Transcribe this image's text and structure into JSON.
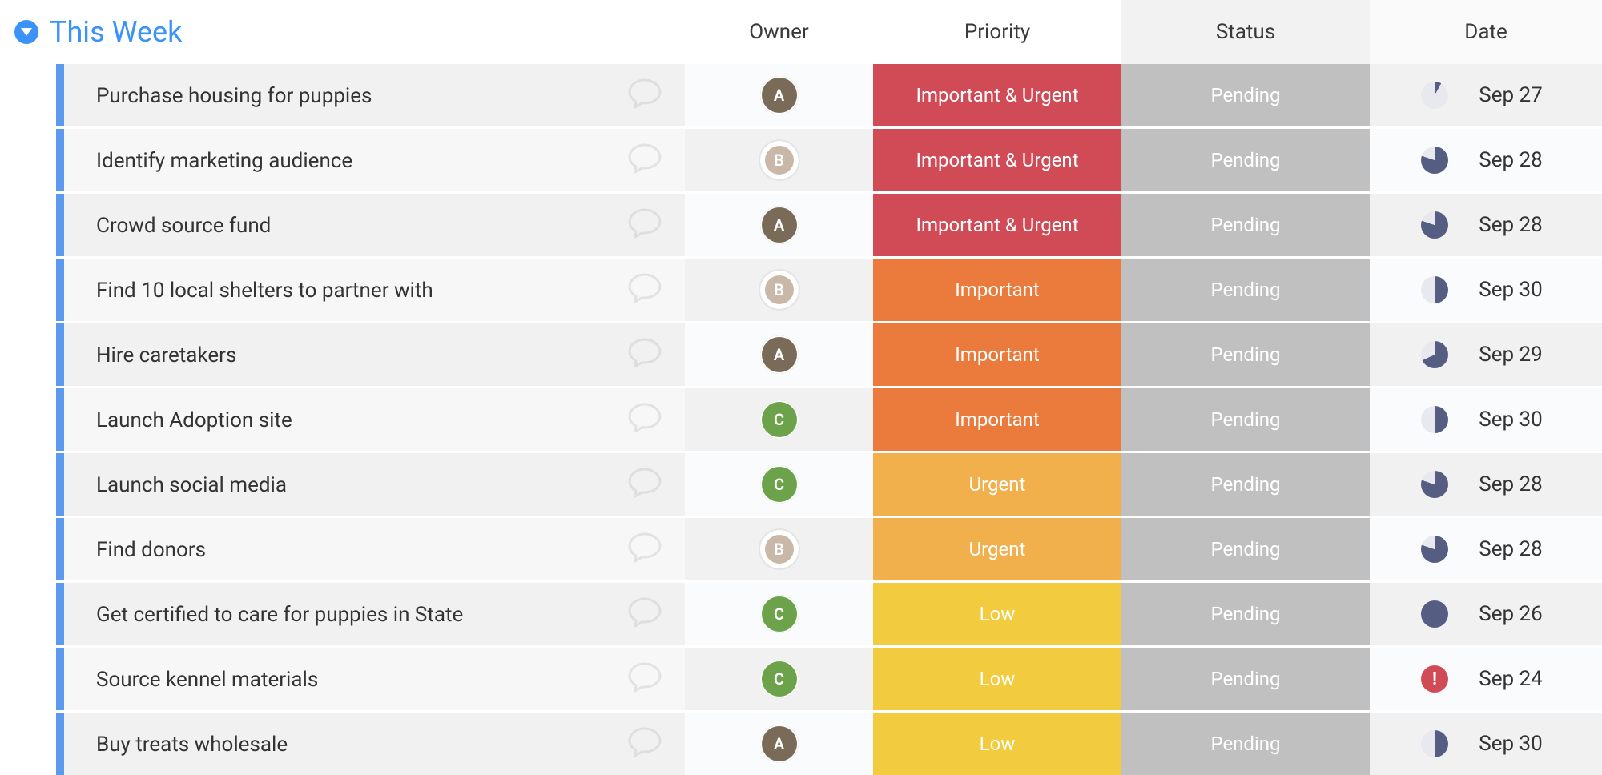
{
  "colors": {
    "group_accent": "#3b93f7",
    "group_title": "#3b93f7",
    "header_text": "#3a3a3a",
    "row_bg": "#f6f6f6",
    "row_handle": "#5c9aef",
    "gap": "#ffffff",
    "pie_fill": "#565d82",
    "pie_empty": "#e8e9ef",
    "overdue_bg": "#d14b57",
    "status_bg_even": "#f1f1f1",
    "status_bg_odd": "#c0c0c0",
    "date_bg_even": "#f1f1f1",
    "date_bg_odd": "#fafbfc",
    "owner_bg_even": "#fafbfc",
    "owner_bg_odd": "#f1f1f1",
    "task_bg_even": "#f1f1f1",
    "task_bg_odd": "#f7f7f7",
    "comment_stroke": "#bdbdbd"
  },
  "priority_colors": {
    "Important & Urgent": "#d14b57",
    "Important": "#ea7b3c",
    "Urgent": "#f1b04c",
    "Low": "#f3cb3f"
  },
  "status_colors": {
    "Pending": {
      "bg": "#c0c0c0",
      "text": "#ffffff"
    }
  },
  "avatars": {
    "A": {
      "bg": "#7a6a58",
      "label": "A"
    },
    "B": {
      "bg": "#c9b8a8",
      "label": "B",
      "ring": true
    },
    "C": {
      "bg": "#6ca24a",
      "label": "C"
    }
  },
  "group": {
    "title": "This Week"
  },
  "columns": {
    "owner": "Owner",
    "priority": "Priority",
    "status": "Status",
    "date": "Date"
  },
  "rows": [
    {
      "task": "Purchase housing for puppies",
      "owner": "A",
      "priority": "Important & Urgent",
      "status": "Pending",
      "date": "Sep 27",
      "progress": 0.08
    },
    {
      "task": "Identify marketing audience",
      "owner": "B",
      "priority": "Important & Urgent",
      "status": "Pending",
      "date": "Sep 28",
      "progress": 0.8
    },
    {
      "task": "Crowd source fund",
      "owner": "A",
      "priority": "Important & Urgent",
      "status": "Pending",
      "date": "Sep 28",
      "progress": 0.8
    },
    {
      "task": "Find 10 local shelters to partner with",
      "owner": "B",
      "priority": "Important",
      "status": "Pending",
      "date": "Sep 30",
      "progress": 0.5
    },
    {
      "task": "Hire caretakers",
      "owner": "A",
      "priority": "Important",
      "status": "Pending",
      "date": "Sep 29",
      "progress": 0.68
    },
    {
      "task": "Launch Adoption site",
      "owner": "C",
      "priority": "Important",
      "status": "Pending",
      "date": "Sep 30",
      "progress": 0.5
    },
    {
      "task": "Launch social media",
      "owner": "C",
      "priority": "Urgent",
      "status": "Pending",
      "date": "Sep 28",
      "progress": 0.8
    },
    {
      "task": "Find donors",
      "owner": "B",
      "priority": "Urgent",
      "status": "Pending",
      "date": "Sep 28",
      "progress": 0.8
    },
    {
      "task": "Get certified to care for puppies in State",
      "owner": "C",
      "priority": "Low",
      "status": "Pending",
      "date": "Sep 26",
      "progress": 1.0
    },
    {
      "task": "Source kennel materials",
      "owner": "C",
      "priority": "Low",
      "status": "Pending",
      "date": "Sep 24",
      "overdue": true
    },
    {
      "task": "Buy treats wholesale",
      "owner": "A",
      "priority": "Low",
      "status": "Pending",
      "date": "Sep 30",
      "progress": 0.5
    }
  ]
}
